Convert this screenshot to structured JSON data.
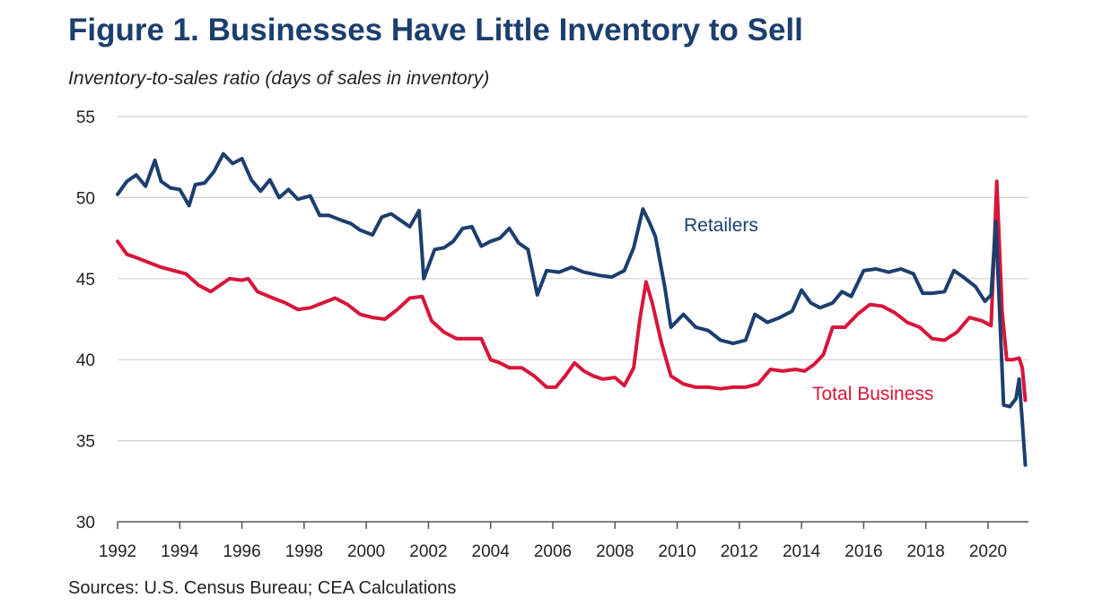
{
  "chart_data": {
    "type": "line",
    "title": "Figure 1. Businesses Have Little Inventory to Sell",
    "subtitle": "Inventory-to-sales ratio (days of sales in inventory)",
    "source": "Sources: U.S. Census Bureau; CEA Calculations",
    "xlabel": "",
    "ylabel": "Inventory-to-sales ratio (days of sales in inventory)",
    "xlim": [
      1992,
      2021.3
    ],
    "ylim": [
      30,
      55
    ],
    "y_ticks": [
      "30",
      "35",
      "40",
      "45",
      "50",
      "55"
    ],
    "y_tick_values": [
      30,
      35,
      40,
      45,
      50,
      55
    ],
    "x_ticks": [
      "1992",
      "1994",
      "1996",
      "1998",
      "2000",
      "2002",
      "2004",
      "2006",
      "2008",
      "2010",
      "2012",
      "2014",
      "2016",
      "2018",
      "2020"
    ],
    "x_tick_values": [
      1992,
      1994,
      1996,
      1998,
      2000,
      2002,
      2004,
      2006,
      2008,
      2010,
      2012,
      2014,
      2016,
      2018,
      2020
    ],
    "grid": true,
    "colors": {
      "retailers": "#1b3f6e",
      "total_business": "#d6163b"
    },
    "series": [
      {
        "name": "Retailers",
        "label": "Retailers",
        "color": "#1b3f6e",
        "x": [
          1992.0,
          1992.3,
          1992.6,
          1992.9,
          1993.2,
          1993.4,
          1993.7,
          1994.0,
          1994.3,
          1994.5,
          1994.8,
          1995.1,
          1995.4,
          1995.7,
          1996.0,
          1996.3,
          1996.6,
          1996.9,
          1997.2,
          1997.5,
          1997.8,
          1998.2,
          1998.5,
          1998.8,
          1999.2,
          1999.5,
          1999.8,
          2000.2,
          2000.5,
          2000.8,
          2001.1,
          2001.4,
          2001.7,
          2001.85,
          2002.2,
          2002.5,
          2002.8,
          2003.1,
          2003.4,
          2003.7,
          2004.0,
          2004.3,
          2004.6,
          2004.9,
          2005.2,
          2005.5,
          2005.8,
          2006.2,
          2006.6,
          2007.0,
          2007.5,
          2007.9,
          2008.3,
          2008.6,
          2008.9,
          2009.1,
          2009.3,
          2009.6,
          2009.8,
          2010.2,
          2010.6,
          2011.0,
          2011.4,
          2011.8,
          2012.2,
          2012.5,
          2012.9,
          2013.3,
          2013.7,
          2014.0,
          2014.3,
          2014.6,
          2015.0,
          2015.3,
          2015.6,
          2016.0,
          2016.4,
          2016.8,
          2017.2,
          2017.6,
          2017.9,
          2018.2,
          2018.6,
          2018.9,
          2019.2,
          2019.6,
          2019.9,
          2020.1,
          2020.25,
          2020.5,
          2020.7,
          2020.9,
          2021.0,
          2021.1,
          2021.2
        ],
        "values": [
          50.2,
          51.0,
          51.4,
          50.7,
          52.3,
          51.0,
          50.6,
          50.5,
          49.5,
          50.8,
          50.9,
          51.6,
          52.7,
          52.1,
          52.4,
          51.1,
          50.4,
          51.1,
          50.0,
          50.5,
          49.9,
          50.1,
          48.9,
          48.9,
          48.6,
          48.4,
          48.0,
          47.7,
          48.8,
          49.0,
          48.6,
          48.2,
          49.2,
          45.0,
          46.8,
          46.9,
          47.3,
          48.1,
          48.2,
          47.0,
          47.3,
          47.5,
          48.1,
          47.2,
          46.8,
          44.0,
          45.5,
          45.4,
          45.7,
          45.4,
          45.2,
          45.1,
          45.5,
          46.9,
          49.3,
          48.5,
          47.6,
          44.5,
          42.0,
          42.8,
          42.0,
          41.8,
          41.2,
          41.0,
          41.2,
          42.8,
          42.3,
          42.6,
          43.0,
          44.3,
          43.5,
          43.2,
          43.5,
          44.2,
          43.9,
          45.5,
          45.6,
          45.4,
          45.6,
          45.3,
          44.1,
          44.1,
          44.2,
          45.5,
          45.1,
          44.5,
          43.6,
          44.0,
          48.5,
          37.2,
          37.1,
          37.6,
          38.8,
          36.2,
          33.5
        ]
      },
      {
        "name": "Total Business",
        "label": "Total Business",
        "color": "#d6163b",
        "x": [
          1992.0,
          1992.3,
          1992.6,
          1993.0,
          1993.4,
          1993.8,
          1994.2,
          1994.6,
          1995.0,
          1995.3,
          1995.6,
          1996.0,
          1996.2,
          1996.5,
          1997.0,
          1997.4,
          1997.8,
          1998.2,
          1998.6,
          1999.0,
          1999.4,
          1999.8,
          2000.2,
          2000.6,
          2001.0,
          2001.4,
          2001.8,
          2002.1,
          2002.5,
          2002.9,
          2003.3,
          2003.7,
          2004.0,
          2004.3,
          2004.6,
          2005.0,
          2005.4,
          2005.8,
          2006.1,
          2006.4,
          2006.7,
          2007.0,
          2007.3,
          2007.6,
          2008.0,
          2008.3,
          2008.6,
          2008.8,
          2009.0,
          2009.2,
          2009.5,
          2009.8,
          2010.2,
          2010.6,
          2011.0,
          2011.4,
          2011.8,
          2012.2,
          2012.6,
          2013.0,
          2013.4,
          2013.8,
          2014.1,
          2014.4,
          2014.7,
          2015.0,
          2015.4,
          2015.8,
          2016.2,
          2016.6,
          2017.0,
          2017.4,
          2017.8,
          2018.2,
          2018.6,
          2019.0,
          2019.4,
          2019.8,
          2020.1,
          2020.28,
          2020.45,
          2020.6,
          2020.8,
          2021.0,
          2021.1,
          2021.2
        ],
        "values": [
          47.3,
          46.5,
          46.3,
          46.0,
          45.7,
          45.5,
          45.3,
          44.6,
          44.2,
          44.6,
          45.0,
          44.9,
          45.0,
          44.2,
          43.8,
          43.5,
          43.1,
          43.2,
          43.5,
          43.8,
          43.4,
          42.8,
          42.6,
          42.5,
          43.1,
          43.8,
          43.9,
          42.4,
          41.7,
          41.3,
          41.3,
          41.3,
          40.0,
          39.8,
          39.5,
          39.5,
          39.0,
          38.3,
          38.3,
          39.0,
          39.8,
          39.3,
          39.0,
          38.8,
          38.9,
          38.4,
          39.5,
          42.5,
          44.8,
          43.5,
          41.0,
          39.0,
          38.5,
          38.3,
          38.3,
          38.2,
          38.3,
          38.3,
          38.5,
          39.4,
          39.3,
          39.4,
          39.3,
          39.7,
          40.3,
          42.0,
          42.0,
          42.8,
          43.4,
          43.3,
          42.9,
          42.3,
          42.0,
          41.3,
          41.2,
          41.7,
          42.6,
          42.4,
          42.1,
          51.0,
          43.0,
          40.0,
          40.0,
          40.1,
          39.5,
          37.5
        ]
      }
    ]
  }
}
